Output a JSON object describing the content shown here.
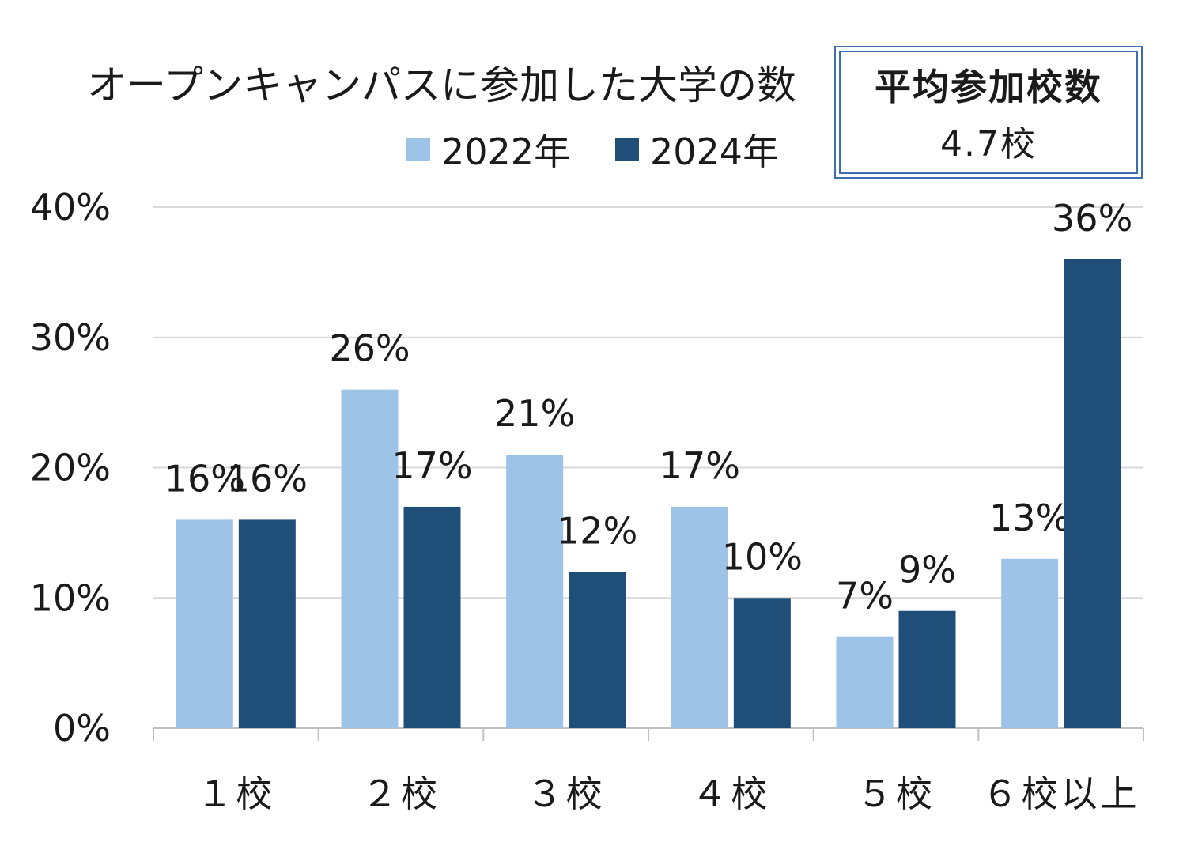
{
  "chart_data": {
    "type": "bar",
    "title": "オープンキャンパスに参加した大学の数",
    "categories": [
      "１校",
      "２校",
      "３校",
      "４校",
      "５校",
      "６校以上"
    ],
    "series": [
      {
        "name": "2022年",
        "color": "#9dc3e6",
        "values": [
          16,
          26,
          21,
          17,
          7,
          13
        ]
      },
      {
        "name": "2024年",
        "color": "#1f4e79",
        "values": [
          16,
          17,
          12,
          10,
          9,
          36
        ]
      }
    ],
    "data_labels": [
      [
        "16%",
        "26%",
        "21%",
        "17%",
        "7%",
        "13%"
      ],
      [
        "16%",
        "17%",
        "12%",
        "10%",
        "9%",
        "36%"
      ]
    ],
    "ylim": [
      0,
      40
    ],
    "yticks": [
      0,
      10,
      20,
      30,
      40
    ],
    "ytick_labels": [
      "0%",
      "10%",
      "20%",
      "30%",
      "40%"
    ],
    "grid": true,
    "legend_position": "top"
  },
  "average_box": {
    "line1": "平均参加校数",
    "line2": "4.7校"
  }
}
